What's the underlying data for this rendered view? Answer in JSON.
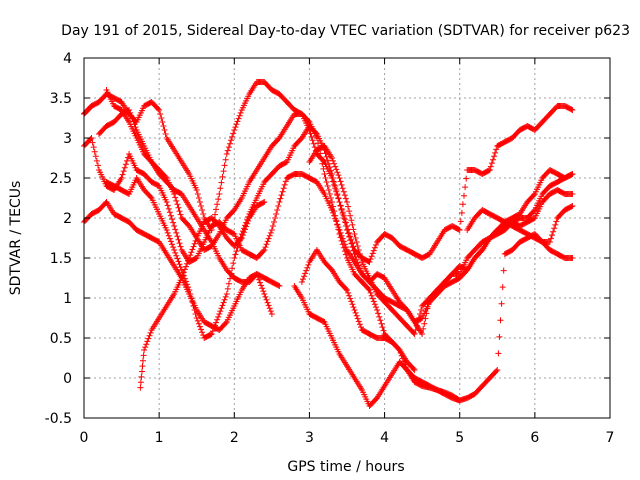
{
  "chart_data": {
    "type": "scatter",
    "title": "Day 191 of 2015, Sidereal Day-to-day VTEC variation (SDTVAR) for receiver p623",
    "xlabel": "GPS time / hours",
    "ylabel": "SDTVAR / TECUs",
    "xlim": [
      0,
      7
    ],
    "ylim": [
      -0.5,
      4
    ],
    "xticks": [
      0,
      1,
      2,
      3,
      4,
      5,
      6,
      7
    ],
    "yticks": [
      -0.5,
      0,
      0.5,
      1,
      1.5,
      2,
      2.5,
      3,
      3.5,
      4
    ],
    "xtick_labels": [
      "0",
      "1",
      "2",
      "3",
      "4",
      "5",
      "6",
      "7"
    ],
    "ytick_labels": [
      "-0.5",
      "0",
      "0.5",
      "1",
      "1.5",
      "2",
      "2.5",
      "3",
      "3.5",
      "4"
    ],
    "grid": true,
    "marker": "+",
    "color": "#ff0000",
    "series": [
      {
        "x": [
          0.0,
          0.05,
          0.1,
          0.2,
          0.3,
          0.4,
          0.5,
          0.6,
          0.7,
          0.8,
          0.9,
          1.0,
          1.1,
          1.2,
          1.3,
          1.4,
          1.5,
          1.6,
          1.7,
          1.8,
          1.9,
          2.0,
          2.1,
          2.2,
          2.3,
          2.4,
          2.5,
          2.6,
          2.7,
          2.8,
          2.9,
          3.0,
          3.1,
          3.2,
          3.3,
          3.4,
          3.5,
          3.6,
          3.7,
          3.8,
          3.9,
          4.0,
          4.1,
          4.2,
          4.3,
          4.4,
          4.5,
          4.6,
          4.7,
          4.8,
          4.9,
          5.0,
          5.1,
          5.2,
          5.3,
          5.4,
          5.5,
          5.6,
          5.7,
          5.8,
          5.9,
          6.0,
          6.1,
          6.2,
          6.3,
          6.4,
          6.5
        ],
        "y": [
          3.3,
          3.35,
          3.4,
          3.45,
          3.55,
          3.5,
          3.45,
          3.3,
          3.2,
          3.4,
          3.45,
          3.35,
          3.0,
          2.85,
          2.7,
          2.55,
          2.35,
          2.0,
          1.85,
          2.3,
          2.8,
          3.1,
          3.35,
          3.55,
          3.7,
          3.7,
          3.6,
          3.55,
          3.45,
          3.35,
          3.3,
          3.2,
          3.0,
          2.55,
          2.2,
          1.8,
          1.5,
          1.3,
          1.2,
          1.1,
          0.85,
          0.55,
          0.45,
          0.35,
          0.1,
          0.0,
          -0.05,
          -0.1,
          -0.15,
          -0.2,
          -0.25,
          -0.28,
          -0.25,
          -0.2,
          -0.1,
          0.0,
          0.1,
          1.55,
          1.6,
          1.7,
          1.75,
          1.8,
          1.7,
          1.6,
          1.55,
          1.5,
          1.5
        ]
      },
      {
        "x": [
          0.3,
          0.4,
          0.5,
          0.6,
          0.7,
          0.8,
          0.9,
          1.0,
          1.1,
          1.2,
          1.3,
          1.4,
          1.5,
          1.6,
          1.7,
          1.8,
          1.9,
          2.0,
          2.1,
          2.2,
          2.3,
          2.4,
          2.5,
          2.6,
          2.7,
          2.8,
          2.9,
          3.0,
          3.1,
          3.2,
          3.3,
          3.4,
          3.5,
          3.6,
          3.7,
          3.8,
          3.9,
          4.0,
          4.1,
          4.2,
          4.3,
          4.4,
          4.5,
          4.6,
          4.7,
          4.8,
          4.9,
          5.0,
          5.1,
          5.2,
          5.3,
          5.4,
          5.5,
          5.6,
          5.7,
          5.8,
          5.9,
          6.0,
          6.1,
          6.2,
          6.3,
          6.4,
          6.5
        ],
        "y": [
          3.6,
          3.4,
          3.35,
          3.2,
          3.0,
          2.8,
          2.7,
          2.6,
          2.5,
          2.3,
          2.0,
          1.9,
          1.75,
          1.6,
          1.65,
          1.8,
          2.0,
          2.1,
          2.25,
          2.45,
          2.6,
          2.75,
          2.9,
          3.0,
          3.15,
          3.3,
          3.3,
          3.1,
          2.8,
          2.7,
          2.5,
          2.2,
          1.9,
          1.6,
          1.5,
          1.45,
          1.7,
          1.8,
          1.75,
          1.65,
          1.6,
          1.55,
          1.5,
          1.55,
          1.7,
          1.85,
          1.9,
          1.85,
          2.6,
          2.6,
          2.55,
          2.6,
          2.9,
          2.95,
          3.0,
          3.1,
          3.15,
          3.1,
          3.2,
          3.3,
          3.4,
          3.4,
          3.35
        ]
      },
      {
        "x": [
          0.0,
          0.1,
          0.2,
          0.3,
          0.4,
          0.5,
          0.6,
          0.7,
          0.8,
          0.9,
          1.0,
          1.1,
          1.2,
          1.3,
          1.4,
          1.5,
          1.6,
          1.7,
          1.8,
          1.9,
          2.0,
          2.1,
          2.2,
          2.3,
          2.4,
          2.5,
          2.6,
          2.7,
          2.8,
          2.9,
          3.0,
          3.1,
          3.2,
          3.3,
          3.4,
          3.5,
          3.6,
          3.7,
          3.8,
          3.9,
          4.0,
          4.1,
          4.2,
          4.3,
          4.4,
          4.5,
          4.6,
          4.7,
          4.8,
          4.9,
          5.0,
          5.1,
          5.2,
          5.3,
          5.4,
          5.5,
          5.6,
          5.7,
          5.8,
          5.9,
          6.0,
          6.1,
          6.2,
          6.3,
          6.4,
          6.5
        ],
        "y": [
          1.95,
          2.05,
          2.1,
          2.2,
          2.05,
          2.0,
          1.95,
          1.85,
          1.8,
          1.75,
          1.7,
          1.55,
          1.4,
          1.25,
          1.05,
          0.85,
          0.7,
          0.65,
          0.6,
          0.7,
          0.9,
          1.1,
          1.25,
          1.3,
          1.25,
          1.2,
          1.15,
          null,
          1.15,
          1.0,
          0.8,
          0.75,
          0.7,
          0.5,
          0.3,
          0.15,
          0.0,
          -0.15,
          -0.35,
          -0.25,
          -0.1,
          0.05,
          0.2,
          0.1,
          -0.05,
          -0.1,
          -0.12,
          -0.15,
          -0.18,
          -0.22,
          -0.28,
          null,
          null,
          null,
          null,
          null,
          null,
          null,
          null,
          null,
          null,
          null,
          null,
          null,
          null,
          null
        ],
        "note_null": "null entries are gaps where no measurement is plotted"
      },
      {
        "x": [
          0.3,
          0.4,
          0.5,
          0.6,
          0.7,
          0.8,
          0.9,
          1.0,
          1.1,
          1.2,
          1.3,
          1.4,
          1.5,
          1.6,
          1.7,
          1.8,
          1.9,
          2.0,
          2.1,
          2.2,
          2.3,
          2.4,
          2.5,
          2.6,
          2.7,
          2.8,
          2.9,
          3.0,
          3.1,
          3.2,
          3.3,
          3.4,
          3.5,
          3.6,
          3.7,
          3.8,
          3.9,
          4.0,
          4.1,
          4.2,
          4.3,
          4.4,
          4.5,
          4.6,
          4.7,
          4.8,
          4.9,
          5.0,
          5.1,
          5.2,
          5.3,
          5.4,
          5.5,
          5.6,
          5.7,
          5.8,
          5.9,
          6.0,
          6.1,
          6.2,
          6.3,
          6.4,
          6.5
        ],
        "y": [
          2.45,
          2.4,
          2.35,
          2.3,
          2.5,
          2.35,
          2.25,
          2.05,
          1.85,
          1.6,
          1.35,
          1.1,
          0.75,
          0.5,
          0.55,
          0.8,
          1.05,
          1.5,
          1.8,
          2.05,
          2.25,
          2.45,
          2.55,
          2.65,
          2.7,
          2.9,
          3.0,
          3.15,
          3.05,
          2.85,
          2.55,
          2.2,
          1.85,
          1.55,
          1.3,
          1.2,
          1.1,
          1.0,
          0.95,
          0.9,
          0.85,
          0.7,
          0.55,
          1.0,
          1.1,
          1.2,
          1.3,
          1.4,
          1.35,
          1.5,
          1.6,
          1.75,
          1.8,
          1.85,
          1.95,
          2.0,
          2.0,
          2.1,
          2.3,
          2.4,
          2.45,
          2.5,
          2.55
        ],
        "note_null": ""
      },
      {
        "x": [
          0.0,
          0.1,
          0.2,
          0.3,
          0.4,
          0.5,
          0.6,
          0.7,
          0.8,
          0.9,
          1.0,
          1.1,
          1.2,
          1.3,
          1.4,
          1.5,
          1.6,
          1.7,
          1.8,
          1.9,
          2.0,
          2.1,
          2.2,
          2.3,
          2.4,
          2.5,
          2.6,
          2.7,
          2.8,
          2.9,
          3.0,
          3.1,
          3.2,
          3.3,
          3.4,
          3.5,
          3.6,
          3.7,
          3.8,
          3.9,
          4.0,
          4.1,
          4.2,
          4.3,
          4.4,
          4.5,
          4.6,
          4.7,
          4.8,
          4.9,
          5.0,
          5.1,
          5.2,
          5.3,
          5.4,
          5.5,
          5.6,
          5.7,
          5.8,
          5.9,
          6.0,
          6.1,
          6.2,
          6.3,
          6.4,
          6.5
        ],
        "y": [
          2.9,
          3.0,
          2.6,
          2.4,
          2.35,
          2.5,
          2.8,
          2.6,
          2.55,
          2.45,
          2.4,
          2.2,
          1.9,
          1.6,
          1.45,
          1.5,
          1.7,
          1.9,
          1.95,
          1.85,
          1.8,
          1.6,
          1.55,
          1.5,
          1.6,
          1.85,
          2.2,
          2.5,
          2.55,
          2.55,
          2.5,
          2.45,
          2.3,
          2.1,
          1.85,
          1.6,
          1.45,
          1.3,
          1.2,
          1.3,
          1.25,
          1.1,
          0.95,
          0.85,
          0.7,
          0.75,
          0.95,
          1.05,
          1.15,
          1.2,
          1.25,
          1.35,
          1.5,
          1.6,
          1.75,
          1.85,
          1.95,
          2.0,
          2.05,
          2.2,
          2.3,
          2.5,
          2.6,
          2.55,
          2.5,
          2.55
        ],
        "note_null": ""
      },
      {
        "x": [
          0.75,
          0.8,
          0.9,
          1.0,
          1.1,
          1.2,
          1.3,
          1.4,
          1.5,
          1.6,
          1.7,
          1.8,
          1.9,
          2.0,
          2.1,
          2.2,
          2.3,
          2.4,
          2.5,
          2.6,
          2.7,
          2.8,
          2.9,
          3.0,
          3.1,
          3.2,
          3.3,
          3.4,
          3.5,
          3.6,
          3.7,
          3.8,
          3.9,
          4.0,
          4.1,
          4.2,
          4.3,
          4.4,
          4.5,
          4.6,
          4.7,
          4.8,
          4.9,
          5.0,
          5.1,
          5.2,
          5.3,
          5.4,
          5.5,
          5.6,
          5.7,
          5.8,
          5.9,
          6.0,
          6.1,
          6.2,
          6.3,
          6.4,
          6.5
        ],
        "y": [
          -0.12,
          0.35,
          0.6,
          0.75,
          0.9,
          1.05,
          1.25,
          1.5,
          1.75,
          1.95,
          2.0,
          1.9,
          1.75,
          1.65,
          1.75,
          2.0,
          2.15,
          2.2,
          null,
          null,
          null,
          null,
          1.2,
          1.45,
          1.6,
          1.45,
          1.35,
          1.2,
          1.1,
          0.85,
          0.6,
          0.55,
          0.5,
          0.5,
          0.45,
          0.35,
          0.2,
          0.1,
          null,
          null,
          null,
          null,
          null,
          null,
          1.85,
          2.0,
          2.1,
          2.05,
          2.0,
          1.95,
          1.9,
          1.85,
          1.8,
          1.75,
          1.7,
          1.7,
          2.0,
          2.1,
          2.15
        ],
        "note_null": ""
      },
      {
        "x": [
          0.2,
          0.3,
          0.4,
          0.5,
          0.6,
          0.7,
          0.8,
          0.9,
          1.0,
          1.1,
          1.2,
          1.3,
          1.4,
          1.5,
          1.6,
          1.7,
          1.8,
          1.9,
          2.0,
          2.1,
          2.2,
          2.3,
          2.4,
          2.5,
          2.6,
          2.7,
          2.8,
          2.9,
          3.0,
          3.1,
          3.2,
          3.3,
          3.4,
          3.5,
          3.6,
          3.7,
          3.8,
          3.9,
          4.0,
          4.1,
          4.2,
          4.3,
          4.4,
          4.5,
          4.6,
          4.7,
          4.8,
          4.9,
          5.0,
          5.1,
          5.2,
          5.3,
          5.4,
          5.5,
          5.6,
          5.7,
          5.8,
          5.9,
          6.0,
          6.1,
          6.2,
          6.3,
          6.4,
          6.5
        ],
        "y": [
          3.05,
          3.15,
          3.2,
          3.3,
          3.35,
          3.1,
          2.9,
          2.7,
          2.55,
          2.45,
          2.35,
          2.3,
          2.15,
          2.0,
          1.85,
          1.7,
          1.5,
          1.35,
          1.25,
          1.2,
          1.2,
          1.3,
          1.05,
          0.8,
          null,
          null,
          null,
          null,
          2.7,
          2.85,
          2.9,
          2.75,
          2.5,
          2.2,
          1.8,
          1.45,
          1.25,
          1.05,
          0.95,
          0.85,
          0.75,
          0.65,
          0.55,
          0.9,
          1.0,
          1.1,
          1.2,
          1.3,
          1.3,
          1.5,
          1.6,
          1.7,
          1.75,
          1.85,
          1.9,
          1.95,
          1.9,
          1.95,
          2.0,
          2.2,
          2.3,
          2.35,
          2.3,
          2.3
        ],
        "note_null": ""
      }
    ]
  }
}
